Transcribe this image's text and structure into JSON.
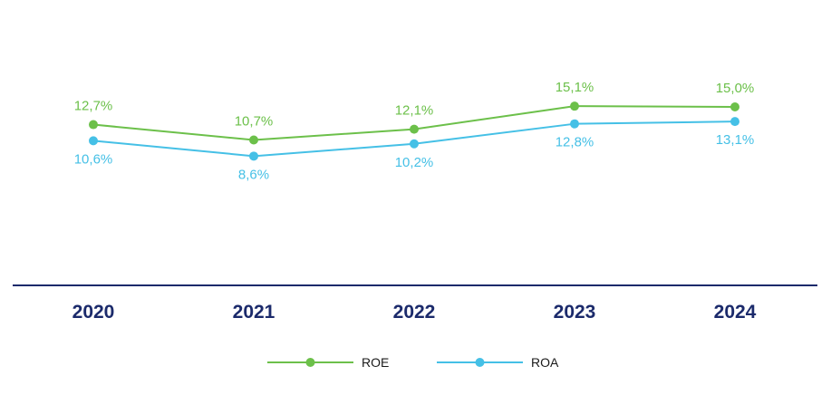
{
  "chart_data": {
    "type": "line",
    "x": [
      "2020",
      "2021",
      "2022",
      "2023",
      "2024"
    ],
    "series": [
      {
        "name": "ROE",
        "color": "#6cc04a",
        "values": [
          12.7,
          10.7,
          12.1,
          15.1,
          15.0
        ],
        "labels": [
          "12,7%",
          "10,7%",
          "12,1%",
          "15,1%",
          "15,0%"
        ],
        "label_position": "above"
      },
      {
        "name": "ROA",
        "color": "#45c0e6",
        "values": [
          10.6,
          8.6,
          10.2,
          12.8,
          13.1
        ],
        "labels": [
          "10,6%",
          "8,6%",
          "10,2%",
          "12,8%",
          "13,1%"
        ],
        "label_position": "below"
      }
    ],
    "axis_color": "#1b2a6b",
    "grid": false,
    "legend_position": "bottom-center"
  }
}
